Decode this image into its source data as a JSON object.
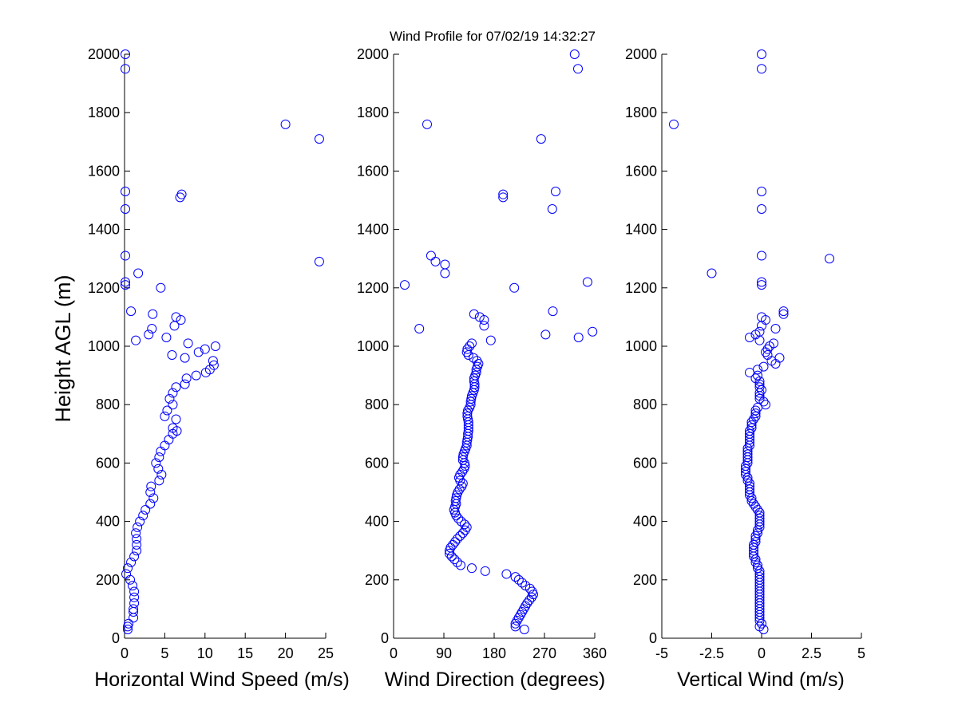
{
  "title": "Wind Profile for  07/02/19 14:32:27",
  "chart_data": [
    {
      "type": "scatter",
      "name": "Horizontal Wind Speed",
      "xlabel": "Horizontal Wind Speed (m/s)",
      "ylabel": "Height AGL (m)",
      "xlim": [
        0,
        25
      ],
      "ylim": [
        0,
        2000
      ],
      "xticks": [
        "0",
        "5",
        "10",
        "15",
        "20",
        "25"
      ],
      "xtick_values": [
        0,
        5,
        10,
        15,
        20,
        25
      ],
      "yticks": [
        "0",
        "200",
        "400",
        "600",
        "800",
        "1000",
        "1200",
        "1400",
        "1600",
        "1800",
        "2000"
      ],
      "ytick_values": [
        0,
        200,
        400,
        600,
        800,
        1000,
        1200,
        1400,
        1600,
        1800,
        2000
      ],
      "marker": "circle",
      "color": "#0000ff",
      "points": [
        [
          0.4,
          30
        ],
        [
          0.4,
          40
        ],
        [
          0.5,
          50
        ],
        [
          1.1,
          70
        ],
        [
          1.1,
          90
        ],
        [
          1.1,
          100
        ],
        [
          1.2,
          120
        ],
        [
          1.2,
          140
        ],
        [
          1.2,
          160
        ],
        [
          1.0,
          180
        ],
        [
          0.7,
          200
        ],
        [
          0.2,
          220
        ],
        [
          0.4,
          240
        ],
        [
          0.8,
          260
        ],
        [
          1.2,
          280
        ],
        [
          1.5,
          300
        ],
        [
          1.5,
          320
        ],
        [
          1.5,
          340
        ],
        [
          1.4,
          360
        ],
        [
          1.6,
          380
        ],
        [
          1.9,
          400
        ],
        [
          2.3,
          420
        ],
        [
          2.6,
          440
        ],
        [
          3.2,
          460
        ],
        [
          3.6,
          480
        ],
        [
          3.2,
          500
        ],
        [
          3.3,
          520
        ],
        [
          4.3,
          540
        ],
        [
          4.6,
          560
        ],
        [
          4.2,
          580
        ],
        [
          3.9,
          600
        ],
        [
          4.3,
          620
        ],
        [
          4.5,
          640
        ],
        [
          5.0,
          660
        ],
        [
          5.5,
          680
        ],
        [
          6.0,
          700
        ],
        [
          6.5,
          710
        ],
        [
          6.0,
          720
        ],
        [
          6.4,
          750
        ],
        [
          5.0,
          760
        ],
        [
          5.3,
          780
        ],
        [
          6.0,
          800
        ],
        [
          5.6,
          820
        ],
        [
          6.0,
          840
        ],
        [
          6.4,
          860
        ],
        [
          7.5,
          870
        ],
        [
          7.7,
          890
        ],
        [
          8.9,
          900
        ],
        [
          10.1,
          910
        ],
        [
          10.6,
          920
        ],
        [
          11.1,
          935
        ],
        [
          11.0,
          950
        ],
        [
          7.5,
          960
        ],
        [
          5.9,
          970
        ],
        [
          9.2,
          980
        ],
        [
          10.0,
          990
        ],
        [
          11.3,
          1000
        ],
        [
          7.9,
          1010
        ],
        [
          1.4,
          1020
        ],
        [
          5.2,
          1030
        ],
        [
          3.0,
          1040
        ],
        [
          3.4,
          1060
        ],
        [
          6.2,
          1070
        ],
        [
          7.0,
          1090
        ],
        [
          6.4,
          1100
        ],
        [
          3.5,
          1110
        ],
        [
          0.8,
          1120
        ],
        [
          4.5,
          1200
        ],
        [
          0.1,
          1210
        ],
        [
          0.1,
          1220
        ],
        [
          1.7,
          1250
        ],
        [
          24.2,
          1290
        ],
        [
          0.1,
          1310
        ],
        [
          0.1,
          1470
        ],
        [
          6.9,
          1510
        ],
        [
          7.1,
          1520
        ],
        [
          0.1,
          1530
        ],
        [
          24.2,
          1710
        ],
        [
          20.0,
          1760
        ],
        [
          0.1,
          1950
        ],
        [
          0.1,
          2000
        ]
      ]
    },
    {
      "type": "scatter",
      "name": "Wind Direction",
      "xlabel": "Wind Direction (degrees)",
      "ylabel": "",
      "xlim": [
        0,
        360
      ],
      "ylim": [
        0,
        2000
      ],
      "xticks": [
        "0",
        "90",
        "180",
        "270",
        "360"
      ],
      "xtick_values": [
        0,
        90,
        180,
        270,
        360
      ],
      "yticks": [
        "0",
        "200",
        "400",
        "600",
        "800",
        "1000",
        "1200",
        "1400",
        "1600",
        "1800",
        "2000"
      ],
      "ytick_values": [
        0,
        200,
        400,
        600,
        800,
        1000,
        1200,
        1400,
        1600,
        1800,
        2000
      ],
      "marker": "circle",
      "color": "#0000ff",
      "points": [
        [
          234,
          30
        ],
        [
          218,
          40
        ],
        [
          218,
          50
        ],
        [
          221,
          60
        ],
        [
          224,
          70
        ],
        [
          227,
          80
        ],
        [
          230,
          90
        ],
        [
          233,
          100
        ],
        [
          236,
          110
        ],
        [
          239,
          120
        ],
        [
          243,
          130
        ],
        [
          247,
          140
        ],
        [
          250,
          150
        ],
        [
          248,
          160
        ],
        [
          244,
          170
        ],
        [
          236,
          180
        ],
        [
          230,
          190
        ],
        [
          224,
          200
        ],
        [
          218,
          210
        ],
        [
          202,
          220
        ],
        [
          164,
          230
        ],
        [
          140,
          240
        ],
        [
          120,
          250
        ],
        [
          114,
          260
        ],
        [
          109,
          270
        ],
        [
          104,
          280
        ],
        [
          100,
          290
        ],
        [
          100,
          300
        ],
        [
          102,
          310
        ],
        [
          106,
          320
        ],
        [
          110,
          330
        ],
        [
          114,
          340
        ],
        [
          119,
          350
        ],
        [
          124,
          360
        ],
        [
          128,
          370
        ],
        [
          131,
          380
        ],
        [
          127,
          390
        ],
        [
          121,
          400
        ],
        [
          116,
          410
        ],
        [
          112,
          420
        ],
        [
          110,
          430
        ],
        [
          108,
          440
        ],
        [
          110,
          450
        ],
        [
          112,
          460
        ],
        [
          111,
          470
        ],
        [
          112,
          480
        ],
        [
          113,
          490
        ],
        [
          115,
          500
        ],
        [
          118,
          510
        ],
        [
          122,
          520
        ],
        [
          124,
          530
        ],
        [
          119,
          540
        ],
        [
          117,
          550
        ],
        [
          119,
          560
        ],
        [
          123,
          570
        ],
        [
          126,
          580
        ],
        [
          128,
          590
        ],
        [
          127,
          600
        ],
        [
          124,
          610
        ],
        [
          124,
          620
        ],
        [
          125,
          630
        ],
        [
          127,
          640
        ],
        [
          129,
          650
        ],
        [
          131,
          660
        ],
        [
          131,
          670
        ],
        [
          132,
          680
        ],
        [
          133,
          690
        ],
        [
          133,
          700
        ],
        [
          134,
          710
        ],
        [
          134,
          720
        ],
        [
          134,
          730
        ],
        [
          134,
          740
        ],
        [
          133,
          750
        ],
        [
          132,
          760
        ],
        [
          132,
          770
        ],
        [
          133,
          780
        ],
        [
          136,
          790
        ],
        [
          138,
          800
        ],
        [
          138,
          810
        ],
        [
          139,
          820
        ],
        [
          140,
          830
        ],
        [
          142,
          840
        ],
        [
          144,
          850
        ],
        [
          145,
          860
        ],
        [
          145,
          870
        ],
        [
          144,
          880
        ],
        [
          144,
          890
        ],
        [
          146,
          900
        ],
        [
          148,
          910
        ],
        [
          148,
          920
        ],
        [
          150,
          930
        ],
        [
          152,
          940
        ],
        [
          149,
          950
        ],
        [
          143,
          960
        ],
        [
          134,
          970
        ],
        [
          131,
          980
        ],
        [
          132,
          990
        ],
        [
          136,
          1000
        ],
        [
          140,
          1010
        ],
        [
          174,
          1020
        ],
        [
          331,
          1030
        ],
        [
          272,
          1040
        ],
        [
          356,
          1050
        ],
        [
          46,
          1060
        ],
        [
          162,
          1070
        ],
        [
          162,
          1090
        ],
        [
          154,
          1100
        ],
        [
          144,
          1110
        ],
        [
          285,
          1120
        ],
        [
          216,
          1200
        ],
        [
          20,
          1210
        ],
        [
          347,
          1220
        ],
        [
          92,
          1250
        ],
        [
          92,
          1280
        ],
        [
          75,
          1290
        ],
        [
          67,
          1310
        ],
        [
          284,
          1470
        ],
        [
          196,
          1510
        ],
        [
          196,
          1520
        ],
        [
          290,
          1530
        ],
        [
          264,
          1710
        ],
        [
          60,
          1760
        ],
        [
          330,
          1950
        ],
        [
          324,
          2000
        ]
      ]
    },
    {
      "type": "scatter",
      "name": "Vertical Wind",
      "xlabel": "Vertical Wind (m/s)",
      "ylabel": "",
      "xlim": [
        -5,
        5
      ],
      "ylim": [
        0,
        2000
      ],
      "xticks": [
        "-5",
        "-2.5",
        "0",
        "2.5",
        "5"
      ],
      "xtick_values": [
        -5,
        -2.5,
        0,
        2.5,
        5
      ],
      "yticks": [
        "0",
        "200",
        "400",
        "600",
        "800",
        "1000",
        "1200",
        "1400",
        "1600",
        "1800",
        "2000"
      ],
      "ytick_values": [
        0,
        200,
        400,
        600,
        800,
        1000,
        1200,
        1400,
        1600,
        1800,
        2000
      ],
      "marker": "circle",
      "color": "#0000ff",
      "points": [
        [
          0.1,
          30
        ],
        [
          -0.1,
          40
        ],
        [
          0.0,
          50
        ],
        [
          -0.1,
          60
        ],
        [
          -0.1,
          70
        ],
        [
          -0.1,
          80
        ],
        [
          -0.1,
          90
        ],
        [
          -0.1,
          100
        ],
        [
          -0.1,
          110
        ],
        [
          -0.1,
          120
        ],
        [
          -0.1,
          130
        ],
        [
          -0.1,
          140
        ],
        [
          -0.1,
          150
        ],
        [
          -0.1,
          160
        ],
        [
          -0.1,
          170
        ],
        [
          -0.1,
          180
        ],
        [
          -0.1,
          190
        ],
        [
          -0.1,
          200
        ],
        [
          -0.1,
          210
        ],
        [
          -0.1,
          220
        ],
        [
          -0.1,
          230
        ],
        [
          -0.2,
          240
        ],
        [
          -0.2,
          250
        ],
        [
          -0.3,
          260
        ],
        [
          -0.3,
          270
        ],
        [
          -0.4,
          280
        ],
        [
          -0.4,
          290
        ],
        [
          -0.4,
          300
        ],
        [
          -0.4,
          310
        ],
        [
          -0.4,
          320
        ],
        [
          -0.3,
          330
        ],
        [
          -0.3,
          340
        ],
        [
          -0.3,
          350
        ],
        [
          -0.2,
          360
        ],
        [
          -0.2,
          370
        ],
        [
          -0.1,
          380
        ],
        [
          -0.1,
          390
        ],
        [
          -0.1,
          400
        ],
        [
          -0.1,
          410
        ],
        [
          -0.1,
          420
        ],
        [
          -0.1,
          430
        ],
        [
          -0.2,
          440
        ],
        [
          -0.3,
          450
        ],
        [
          -0.4,
          460
        ],
        [
          -0.5,
          470
        ],
        [
          -0.5,
          480
        ],
        [
          -0.6,
          490
        ],
        [
          -0.6,
          500
        ],
        [
          -0.6,
          510
        ],
        [
          -0.6,
          520
        ],
        [
          -0.6,
          530
        ],
        [
          -0.7,
          540
        ],
        [
          -0.7,
          550
        ],
        [
          -0.8,
          560
        ],
        [
          -0.8,
          570
        ],
        [
          -0.8,
          580
        ],
        [
          -0.8,
          590
        ],
        [
          -0.7,
          600
        ],
        [
          -0.7,
          610
        ],
        [
          -0.7,
          620
        ],
        [
          -0.7,
          630
        ],
        [
          -0.7,
          640
        ],
        [
          -0.7,
          650
        ],
        [
          -0.6,
          660
        ],
        [
          -0.6,
          670
        ],
        [
          -0.6,
          680
        ],
        [
          -0.6,
          690
        ],
        [
          -0.6,
          700
        ],
        [
          -0.6,
          710
        ],
        [
          -0.5,
          720
        ],
        [
          -0.5,
          730
        ],
        [
          -0.5,
          740
        ],
        [
          -0.4,
          750
        ],
        [
          -0.3,
          760
        ],
        [
          -0.3,
          770
        ],
        [
          -0.3,
          780
        ],
        [
          -0.2,
          790
        ],
        [
          0.2,
          800
        ],
        [
          0.1,
          810
        ],
        [
          -0.1,
          820
        ],
        [
          -0.1,
          830
        ],
        [
          -0.1,
          840
        ],
        [
          0.0,
          850
        ],
        [
          -0.1,
          860
        ],
        [
          -0.1,
          870
        ],
        [
          -0.1,
          880
        ],
        [
          -0.3,
          890
        ],
        [
          -0.2,
          900
        ],
        [
          -0.6,
          910
        ],
        [
          -0.2,
          920
        ],
        [
          0.1,
          930
        ],
        [
          0.7,
          940
        ],
        [
          0.5,
          950
        ],
        [
          0.9,
          960
        ],
        [
          0.3,
          970
        ],
        [
          0.2,
          980
        ],
        [
          0.3,
          990
        ],
        [
          0.4,
          1000
        ],
        [
          0.6,
          1010
        ],
        [
          -0.1,
          1020
        ],
        [
          -0.6,
          1030
        ],
        [
          -0.3,
          1040
        ],
        [
          -0.1,
          1050
        ],
        [
          0.7,
          1060
        ],
        [
          0.0,
          1070
        ],
        [
          0.2,
          1090
        ],
        [
          0.0,
          1100
        ],
        [
          1.1,
          1110
        ],
        [
          1.1,
          1120
        ],
        [
          0.0,
          1210
        ],
        [
          0.0,
          1220
        ],
        [
          -2.5,
          1250
        ],
        [
          3.4,
          1300
        ],
        [
          0.0,
          1310
        ],
        [
          0.0,
          1470
        ],
        [
          0.0,
          1530
        ],
        [
          -4.4,
          1760
        ],
        [
          0.0,
          1950
        ],
        [
          0.0,
          2000
        ]
      ]
    }
  ]
}
